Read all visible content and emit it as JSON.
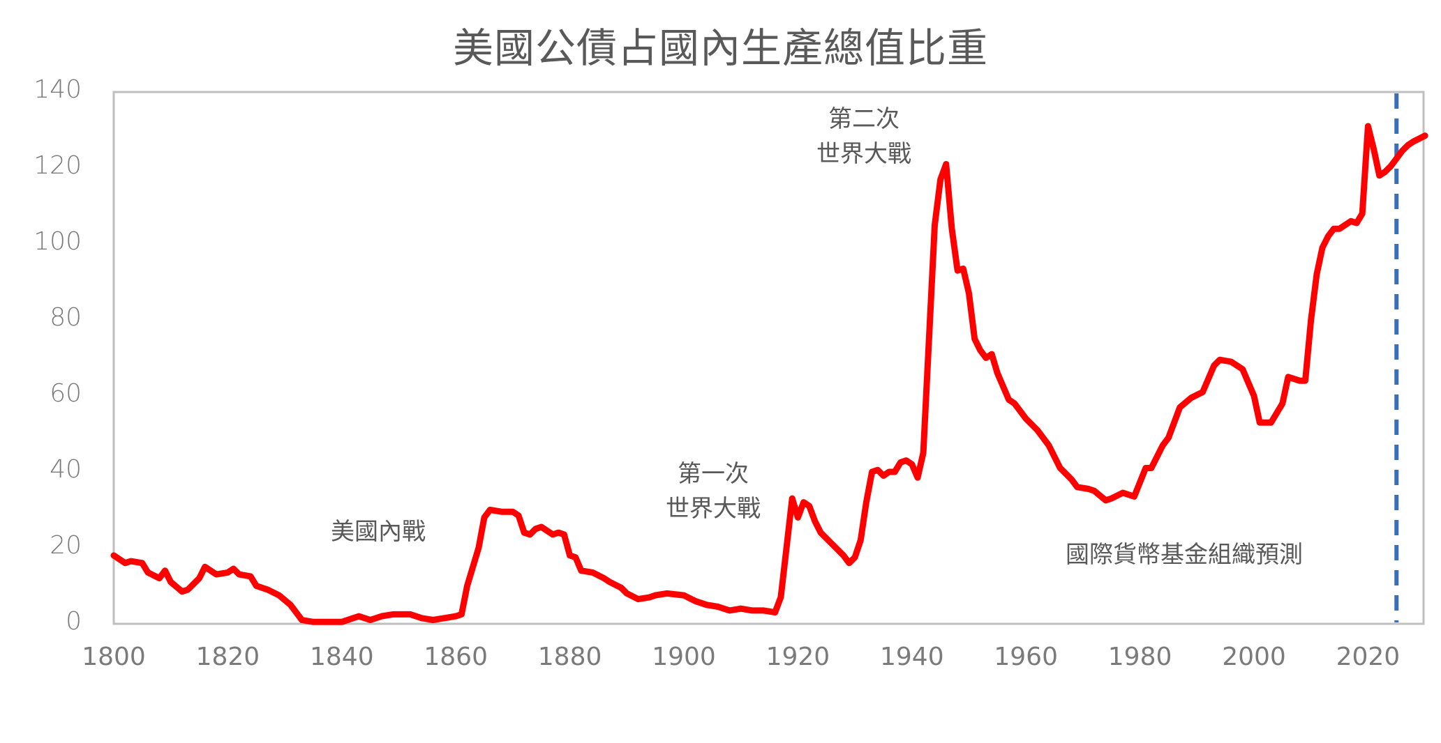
{
  "chart_data": {
    "type": "line",
    "title": "美國公債占國內生產總值比重",
    "xlabel": "",
    "ylabel": "",
    "xlim": [
      1800,
      2030
    ],
    "ylim": [
      0,
      140
    ],
    "x_ticks": [
      1800,
      1820,
      1840,
      1860,
      1880,
      1900,
      1920,
      1940,
      1960,
      1980,
      2000,
      2020
    ],
    "x_tick_labels": [
      "1800",
      "1820",
      "1840",
      "1860",
      "1880",
      "1900",
      "1920",
      "1940",
      "1960",
      "1980",
      "2000",
      "2020"
    ],
    "y_ticks": [
      0,
      20,
      40,
      60,
      80,
      100,
      120,
      140
    ],
    "y_tick_labels": [
      "0",
      "20",
      "40",
      "60",
      "80",
      "100",
      "120",
      "140"
    ],
    "grid": false,
    "legend": null,
    "series": [
      {
        "name": "美國公債占國內生產總值比重",
        "color": "#ff0000",
        "x": [
          1800,
          1802,
          1803,
          1805,
          1806,
          1808,
          1809,
          1810,
          1812,
          1813,
          1815,
          1816,
          1818,
          1820,
          1821,
          1822,
          1824,
          1825,
          1827,
          1829,
          1831,
          1833,
          1835,
          1838,
          1840,
          1843,
          1845,
          1847,
          1849,
          1852,
          1854,
          1856,
          1858,
          1860,
          1861,
          1862,
          1864,
          1865,
          1866,
          1868,
          1870,
          1871,
          1872,
          1873,
          1874,
          1875,
          1877,
          1878,
          1879,
          1880,
          1881,
          1882,
          1884,
          1886,
          1887,
          1889,
          1890,
          1892,
          1894,
          1895,
          1897,
          1900,
          1902,
          1904,
          1906,
          1908,
          1910,
          1912,
          1914,
          1916,
          1917,
          1918,
          1919,
          1920,
          1921,
          1922,
          1923,
          1924,
          1926,
          1928,
          1929,
          1930,
          1931,
          1932,
          1933,
          1934,
          1935,
          1936,
          1937,
          1938,
          1939,
          1940,
          1941,
          1942,
          1943,
          1944,
          1945,
          1946,
          1947,
          1948,
          1949,
          1950,
          1951,
          1952,
          1953,
          1954,
          1955,
          1957,
          1958,
          1960,
          1962,
          1964,
          1966,
          1968,
          1969,
          1971,
          1972,
          1974,
          1975,
          1977,
          1979,
          1981,
          1982,
          1984,
          1985,
          1987,
          1989,
          1991,
          1993,
          1994,
          1996,
          1998,
          2000,
          2001,
          2003,
          2005,
          2006,
          2008,
          2009,
          2010,
          2011,
          2012,
          2013,
          2014,
          2015,
          2016,
          2017,
          2018,
          2019,
          2020,
          2021,
          2022,
          2023,
          2024,
          2025,
          2026,
          2027,
          2028,
          2030
        ],
        "values": [
          18,
          16,
          16.5,
          16,
          13.5,
          12,
          14,
          11,
          8.5,
          9,
          12,
          15,
          13,
          13.5,
          14.5,
          13,
          12.5,
          10,
          9,
          7.5,
          5,
          1,
          0.5,
          0.5,
          0.5,
          2,
          1,
          2,
          2.5,
          2.5,
          1.5,
          1,
          1.5,
          2,
          2.5,
          10,
          20,
          28,
          30,
          29.5,
          29.5,
          28.5,
          24,
          23.5,
          25,
          25.5,
          23.5,
          24,
          23.5,
          18,
          17.5,
          14,
          13.5,
          12,
          11,
          9.5,
          8,
          6.5,
          7,
          7.5,
          8,
          7.5,
          6,
          5,
          4.5,
          3.5,
          4,
          3.5,
          3.5,
          3,
          7,
          20,
          33,
          28,
          32,
          31,
          27,
          24,
          21,
          18,
          16,
          17.5,
          22,
          32,
          40,
          40.5,
          39,
          40,
          40,
          42.5,
          43,
          42,
          38.5,
          45,
          75,
          105,
          117,
          121,
          104,
          93,
          93.5,
          87,
          75,
          72,
          70,
          71,
          66,
          59,
          58,
          54,
          51,
          47,
          41,
          38,
          36,
          35.5,
          35,
          32.5,
          33,
          34.5,
          33.5,
          41,
          41,
          47,
          49,
          57,
          59.5,
          61,
          68,
          69.5,
          69,
          67,
          60,
          53,
          53,
          58,
          65,
          64,
          64,
          80,
          92,
          99,
          102,
          104,
          104,
          105,
          106,
          105.5,
          108,
          131,
          125,
          118,
          119,
          120.5,
          122.5,
          124.5,
          126,
          127,
          128.5
        ]
      }
    ],
    "forecast_line": {
      "x": 2025,
      "color": "#3a6fb5",
      "style": "dashed",
      "label": "國際貨幣基金組織預測"
    },
    "annotations": [
      {
        "text": "美國內戰",
        "x": 1839,
        "y": 22
      },
      {
        "text": "第一次\n世界大戰",
        "x": 1907,
        "y": 36
      },
      {
        "text": "第二次\n世界大戰",
        "x": 1933,
        "y": 125
      },
      {
        "text": "國際貨幣基金組織預測",
        "x": 2008,
        "y": 17
      }
    ]
  },
  "title": "美國公債占國內生產總值比重",
  "annotations": {
    "civil_war": "美國內戰",
    "ww1_line1": "第一次",
    "ww1_line2": "世界大戰",
    "ww2_line1": "第二次",
    "ww2_line2": "世界大戰",
    "imf_forecast": "國際貨幣基金組織預測"
  },
  "colors": {
    "line": "#ff0000",
    "forecast": "#3a6fb5",
    "axis": "#bfbfbf",
    "text": "#595959",
    "tick_text": "#7a7a7a"
  }
}
